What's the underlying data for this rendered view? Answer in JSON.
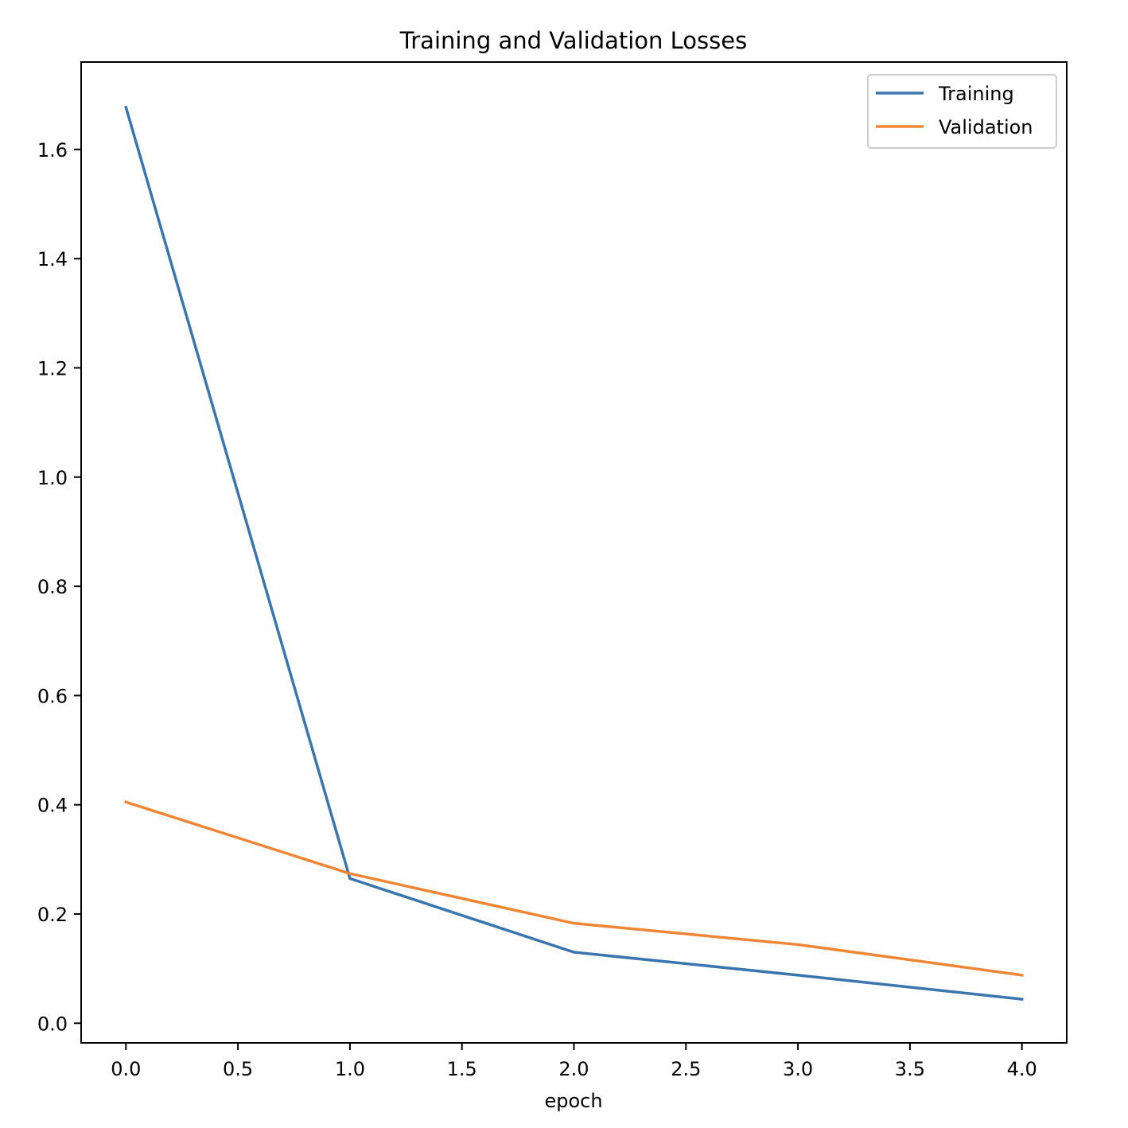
{
  "chart_data": {
    "type": "line",
    "title": "Training and Validation Losses",
    "xlabel": "epoch",
    "ylabel": "",
    "x": [
      0,
      1,
      2,
      3,
      4
    ],
    "xlim": [
      -0.2,
      4.2
    ],
    "ylim": [
      -0.036,
      1.76
    ],
    "xticks": [
      0.0,
      0.5,
      1.0,
      1.5,
      2.0,
      2.5,
      3.0,
      3.5,
      4.0
    ],
    "xtick_labels": [
      "0.0",
      "0.5",
      "1.0",
      "1.5",
      "2.0",
      "2.5",
      "3.0",
      "3.5",
      "4.0"
    ],
    "yticks": [
      0.0,
      0.2,
      0.4,
      0.6,
      0.8,
      1.0,
      1.2,
      1.4,
      1.6
    ],
    "ytick_labels": [
      "0.0",
      "0.2",
      "0.4",
      "0.6",
      "0.8",
      "1.0",
      "1.2",
      "1.4",
      "1.6"
    ],
    "grid": false,
    "legend_position": "top-right",
    "series": [
      {
        "name": "Training",
        "color": "#3a75ae",
        "values": [
          1.677,
          0.265,
          0.13,
          0.088,
          0.044
        ]
      },
      {
        "name": "Validation",
        "color": "#ef8636",
        "values": [
          0.405,
          0.274,
          0.183,
          0.144,
          0.088
        ]
      }
    ]
  }
}
